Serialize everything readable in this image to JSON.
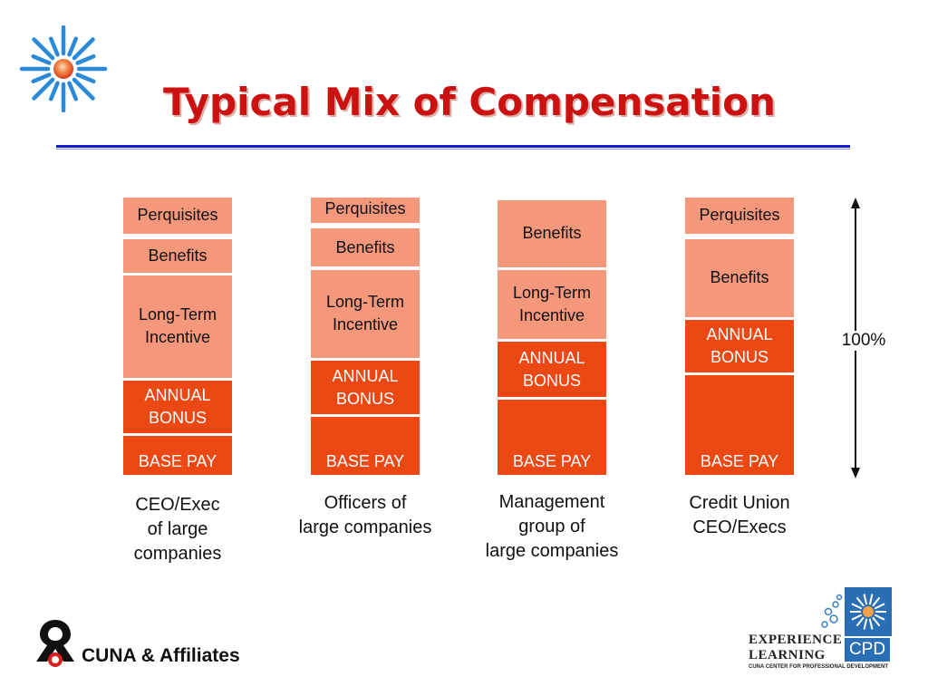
{
  "slide": {
    "title": "Typical Mix of Compensation"
  },
  "chart_data": {
    "type": "bar",
    "stacked": true,
    "normalized": true,
    "categories": [
      "CEO/Exec\nof large\ncompanies",
      "Officers of\nlarge companies",
      "Management\ngroup of\nlarge companies",
      "Credit Union\nCEO/Execs"
    ],
    "components": [
      "BASE PAY",
      "ANNUAL\nBONUS",
      "Long-Term\nIncentive",
      "Benefits",
      "Perquisites"
    ],
    "values_percent": [
      {
        "BASE PAY": 15,
        "ANNUAL\nBONUS": 20,
        "Long-Term\nIncentive": 38,
        "Benefits": 13,
        "Perquisites": 14
      },
      {
        "BASE PAY": 22,
        "ANNUAL\nBONUS": 20,
        "Long-Term\nIncentive": 33,
        "Benefits": 15,
        "Perquisites": 10
      },
      {
        "BASE PAY": 28,
        "ANNUAL\nBONUS": 21,
        "Long-Term\nIncentive": 26,
        "Benefits": 25,
        "Perquisites": 0
      },
      {
        "BASE PAY": 37,
        "ANNUAL\nBONUS": 20,
        "Long-Term\nIncentive": 0,
        "Benefits": 29,
        "Perquisites": 14
      }
    ],
    "total_label": "100%",
    "colors": {
      "BASE PAY": "#ec4814",
      "ANNUAL\nBONUS": "#ec4814",
      "Long-Term\nIncentive": "#f4977a",
      "Benefits": "#f4977a",
      "Perquisites": "#f4977a"
    },
    "text_colors": {
      "BASE PAY": "#ffffff",
      "ANNUAL\nBONUS": "#ffffff",
      "Long-Term\nIncentive": "#111111",
      "Benefits": "#111111",
      "Perquisites": "#111111"
    }
  },
  "footer": {
    "left_logo_text": "CUNA & Affiliates",
    "right_logo_line1": "Experience",
    "right_logo_line2": "Learning",
    "right_logo_badge": "CPD",
    "right_logo_sub": "CUNA Center for Professional Development"
  },
  "icons": {
    "top_left": "sunburst-icon",
    "bottom_left": "cuna-logo-icon",
    "bottom_right": "experience-learning-logo-icon"
  }
}
